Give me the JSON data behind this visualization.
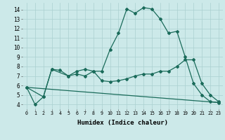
{
  "xlabel": "Humidex (Indice chaleur)",
  "xlim": [
    -0.5,
    23.5
  ],
  "ylim": [
    3.5,
    14.7
  ],
  "xticks": [
    0,
    1,
    2,
    3,
    4,
    5,
    6,
    7,
    8,
    9,
    10,
    11,
    12,
    13,
    14,
    15,
    16,
    17,
    18,
    19,
    20,
    21,
    22,
    23
  ],
  "yticks": [
    4,
    5,
    6,
    7,
    8,
    9,
    10,
    11,
    12,
    13,
    14
  ],
  "background_color": "#cce9e9",
  "grid_color": "#aad0d0",
  "line_color": "#1a6b5a",
  "line1_x": [
    0,
    1,
    2,
    3,
    4,
    5,
    6,
    7,
    8,
    9,
    10,
    11,
    12,
    13,
    14,
    15,
    16,
    17,
    18,
    19,
    20,
    21,
    22,
    23
  ],
  "line1_y": [
    5.8,
    4.0,
    4.8,
    7.7,
    7.6,
    7.0,
    7.5,
    7.7,
    7.5,
    7.5,
    9.8,
    11.5,
    14.05,
    13.6,
    14.2,
    14.05,
    13.0,
    11.5,
    11.7,
    9.0,
    6.2,
    5.0,
    4.3,
    4.2
  ],
  "line2_x": [
    0,
    2,
    3,
    5,
    6,
    7,
    8,
    9,
    10,
    11,
    12,
    13,
    14,
    15,
    16,
    17,
    18,
    19,
    20,
    21,
    22,
    23
  ],
  "line2_y": [
    5.8,
    4.8,
    7.7,
    7.0,
    7.2,
    7.0,
    7.5,
    6.5,
    6.4,
    6.5,
    6.7,
    7.0,
    7.2,
    7.2,
    7.5,
    7.5,
    8.0,
    8.7,
    8.7,
    6.2,
    5.0,
    4.3
  ],
  "line3_x": [
    0,
    23
  ],
  "line3_y": [
    5.8,
    4.2
  ]
}
